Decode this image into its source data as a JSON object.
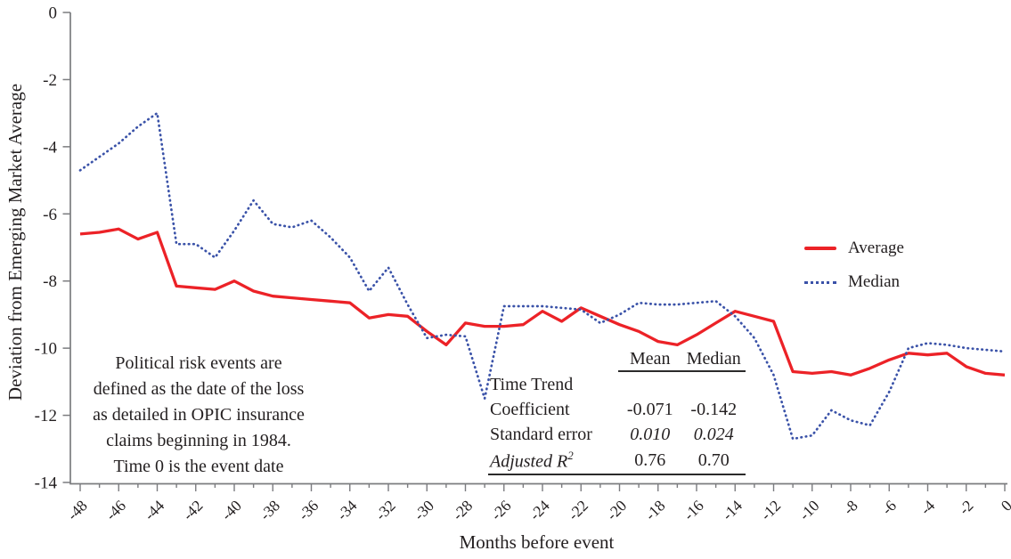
{
  "figure": {
    "y_axis_title": "Deviation from Emerging Market Average",
    "x_axis_title": "Months before event"
  },
  "legend": {
    "average_label": "Average",
    "median_label": "Median"
  },
  "annotation": {
    "lines": [
      "Political risk events are",
      "defined as the date of the loss",
      "as detailed in OPIC insurance",
      "claims beginning in 1984.",
      "Time 0 is the event date"
    ]
  },
  "stats_table": {
    "col_headers": [
      "Mean",
      "Median"
    ],
    "row_time_trend": {
      "label": "Time Trend"
    },
    "row_coefficient": {
      "label": "Coefficient",
      "mean": "-0.071",
      "median": "-0.142"
    },
    "row_std_error": {
      "label": "Standard error",
      "mean": "0.010",
      "median": "0.024"
    },
    "row_adj_r2": {
      "label": "Adjusted R",
      "sup": "2",
      "mean": "0.76",
      "median": "0.70"
    }
  },
  "colors": {
    "average_line": "#ec2227",
    "median_line": "#3a52a8",
    "axis": "#7b7c7f",
    "ink": "#231f20"
  },
  "chart_data": {
    "type": "line",
    "title": "",
    "xlabel": "Months before event",
    "ylabel": "Deviation from Emerging Market Average",
    "xlim": [
      -48,
      0
    ],
    "ylim": [
      -14,
      0
    ],
    "y_ticks": [
      0,
      -2,
      -4,
      -6,
      -8,
      -10,
      -12,
      -14
    ],
    "x_major_tick_step": 2,
    "x_minor_tick_step": 1,
    "grid": false,
    "legend_position": "right",
    "x": [
      -48,
      -47,
      -46,
      -45,
      -44,
      -43,
      -42,
      -41,
      -40,
      -39,
      -38,
      -37,
      -36,
      -35,
      -34,
      -33,
      -32,
      -31,
      -30,
      -29,
      -28,
      -27,
      -26,
      -25,
      -24,
      -23,
      -22,
      -21,
      -20,
      -19,
      -18,
      -17,
      -16,
      -15,
      -14,
      -13,
      -12,
      -11,
      -10,
      -9,
      -8,
      -7,
      -6,
      -5,
      -4,
      -3,
      -2,
      -1,
      0
    ],
    "series": [
      {
        "name": "Average",
        "color": "#ec2227",
        "line_style": "solid",
        "values": [
          -6.6,
          -6.55,
          -6.45,
          -6.75,
          -6.55,
          -8.15,
          -8.2,
          -8.25,
          -8.0,
          -8.3,
          -8.45,
          -8.5,
          -8.55,
          -8.6,
          -8.65,
          -9.1,
          -9.0,
          -9.05,
          -9.5,
          -9.9,
          -9.25,
          -9.35,
          -9.35,
          -9.3,
          -8.9,
          -9.2,
          -8.8,
          -9.05,
          -9.3,
          -9.5,
          -9.8,
          -9.9,
          -9.6,
          -9.25,
          -8.9,
          -9.05,
          -9.2,
          -10.7,
          -10.75,
          -10.7,
          -10.8,
          -10.6,
          -10.35,
          -10.15,
          -10.2,
          -10.15,
          -10.55,
          -10.75,
          -10.8
        ]
      },
      {
        "name": "Median",
        "color": "#3a52a8",
        "line_style": "dotted",
        "values": [
          -4.7,
          -4.3,
          -3.9,
          -3.4,
          -3.0,
          -6.9,
          -6.9,
          -7.3,
          -6.5,
          -5.6,
          -6.3,
          -6.4,
          -6.2,
          -6.7,
          -7.3,
          -8.3,
          -7.6,
          -8.7,
          -9.7,
          -9.6,
          -9.65,
          -11.5,
          -8.75,
          -8.75,
          -8.75,
          -8.8,
          -8.85,
          -9.25,
          -9.0,
          -8.65,
          -8.7,
          -8.7,
          -8.65,
          -8.6,
          -9.05,
          -9.7,
          -10.8,
          -12.7,
          -12.6,
          -11.85,
          -12.15,
          -12.3,
          -11.3,
          -10.0,
          -9.85,
          -9.9,
          -10.0,
          -10.05,
          -10.1
        ]
      }
    ]
  }
}
